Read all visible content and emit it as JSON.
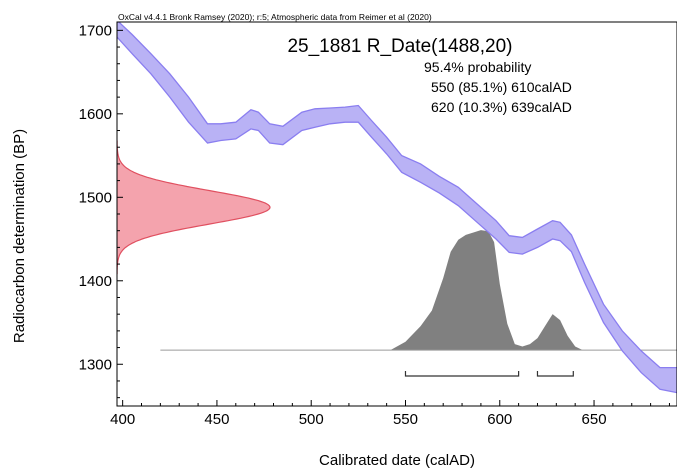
{
  "chart_data": {
    "type": "area",
    "header": "OxCal v4.4.1 Bronk Ramsey (2020); r:5; Atmospheric data from Reimer et al (2020)",
    "title": "25_1881 R_Date(1488,20)",
    "annotations": {
      "probability": "95.4% probability",
      "ranges": [
        "550 (85.1%) 610calAD",
        "620 (10.3%) 639calAD"
      ]
    },
    "xlabel": "Calibrated date (calAD)",
    "ylabel": "Radiocarbon determination (BP)",
    "xlim": [
      397,
      694
    ],
    "ylim": [
      1250,
      1710
    ],
    "x_ticks": [
      400,
      450,
      500,
      550,
      600,
      650
    ],
    "y_ticks": [
      1300,
      1400,
      1500,
      1600,
      1700
    ],
    "calibration_curve": {
      "color": "#8a7ef0",
      "fill": "#b9b2f5",
      "x": [
        397,
        405,
        415,
        425,
        435,
        445,
        452,
        460,
        468,
        472,
        478,
        485,
        495,
        502,
        510,
        518,
        525,
        532,
        540,
        548,
        558,
        568,
        578,
        588,
        598,
        605,
        612,
        620,
        628,
        632,
        638,
        645,
        655,
        665,
        675,
        685,
        694
      ],
      "upper": [
        1712,
        1695,
        1672,
        1648,
        1620,
        1588,
        1588,
        1590,
        1605,
        1602,
        1588,
        1585,
        1602,
        1606,
        1607,
        1608,
        1610,
        1592,
        1572,
        1550,
        1540,
        1525,
        1512,
        1492,
        1472,
        1454,
        1452,
        1462,
        1472,
        1470,
        1455,
        1420,
        1372,
        1340,
        1316,
        1296,
        1296
      ],
      "lower": [
        1692,
        1672,
        1648,
        1620,
        1590,
        1565,
        1568,
        1570,
        1582,
        1580,
        1565,
        1563,
        1580,
        1584,
        1588,
        1590,
        1590,
        1572,
        1552,
        1530,
        1518,
        1505,
        1490,
        1470,
        1450,
        1434,
        1432,
        1440,
        1450,
        1448,
        1435,
        1398,
        1350,
        1316,
        1290,
        1270,
        1266
      ]
    },
    "radiocarbon_distribution": {
      "mean": 1488,
      "sd": 20,
      "color": "#e05060",
      "fill": "#f4a3ad"
    },
    "calibrated_distribution": {
      "color": "#555555",
      "fill": "#808080",
      "x": [
        420,
        542,
        550,
        558,
        564,
        570,
        574,
        578,
        582,
        586,
        590,
        594,
        597,
        600,
        604,
        608,
        612,
        616,
        620,
        624,
        628,
        632,
        636,
        640,
        644,
        694
      ],
      "density": [
        0,
        0,
        0.07,
        0.2,
        0.33,
        0.6,
        0.82,
        0.92,
        0.96,
        0.98,
        1.0,
        0.99,
        0.9,
        0.55,
        0.22,
        0.05,
        0.03,
        0.05,
        0.1,
        0.2,
        0.3,
        0.25,
        0.12,
        0.03,
        0,
        0
      ]
    },
    "range_brackets": [
      {
        "from": 550,
        "to": 610
      },
      {
        "from": 620,
        "to": 639
      }
    ]
  }
}
